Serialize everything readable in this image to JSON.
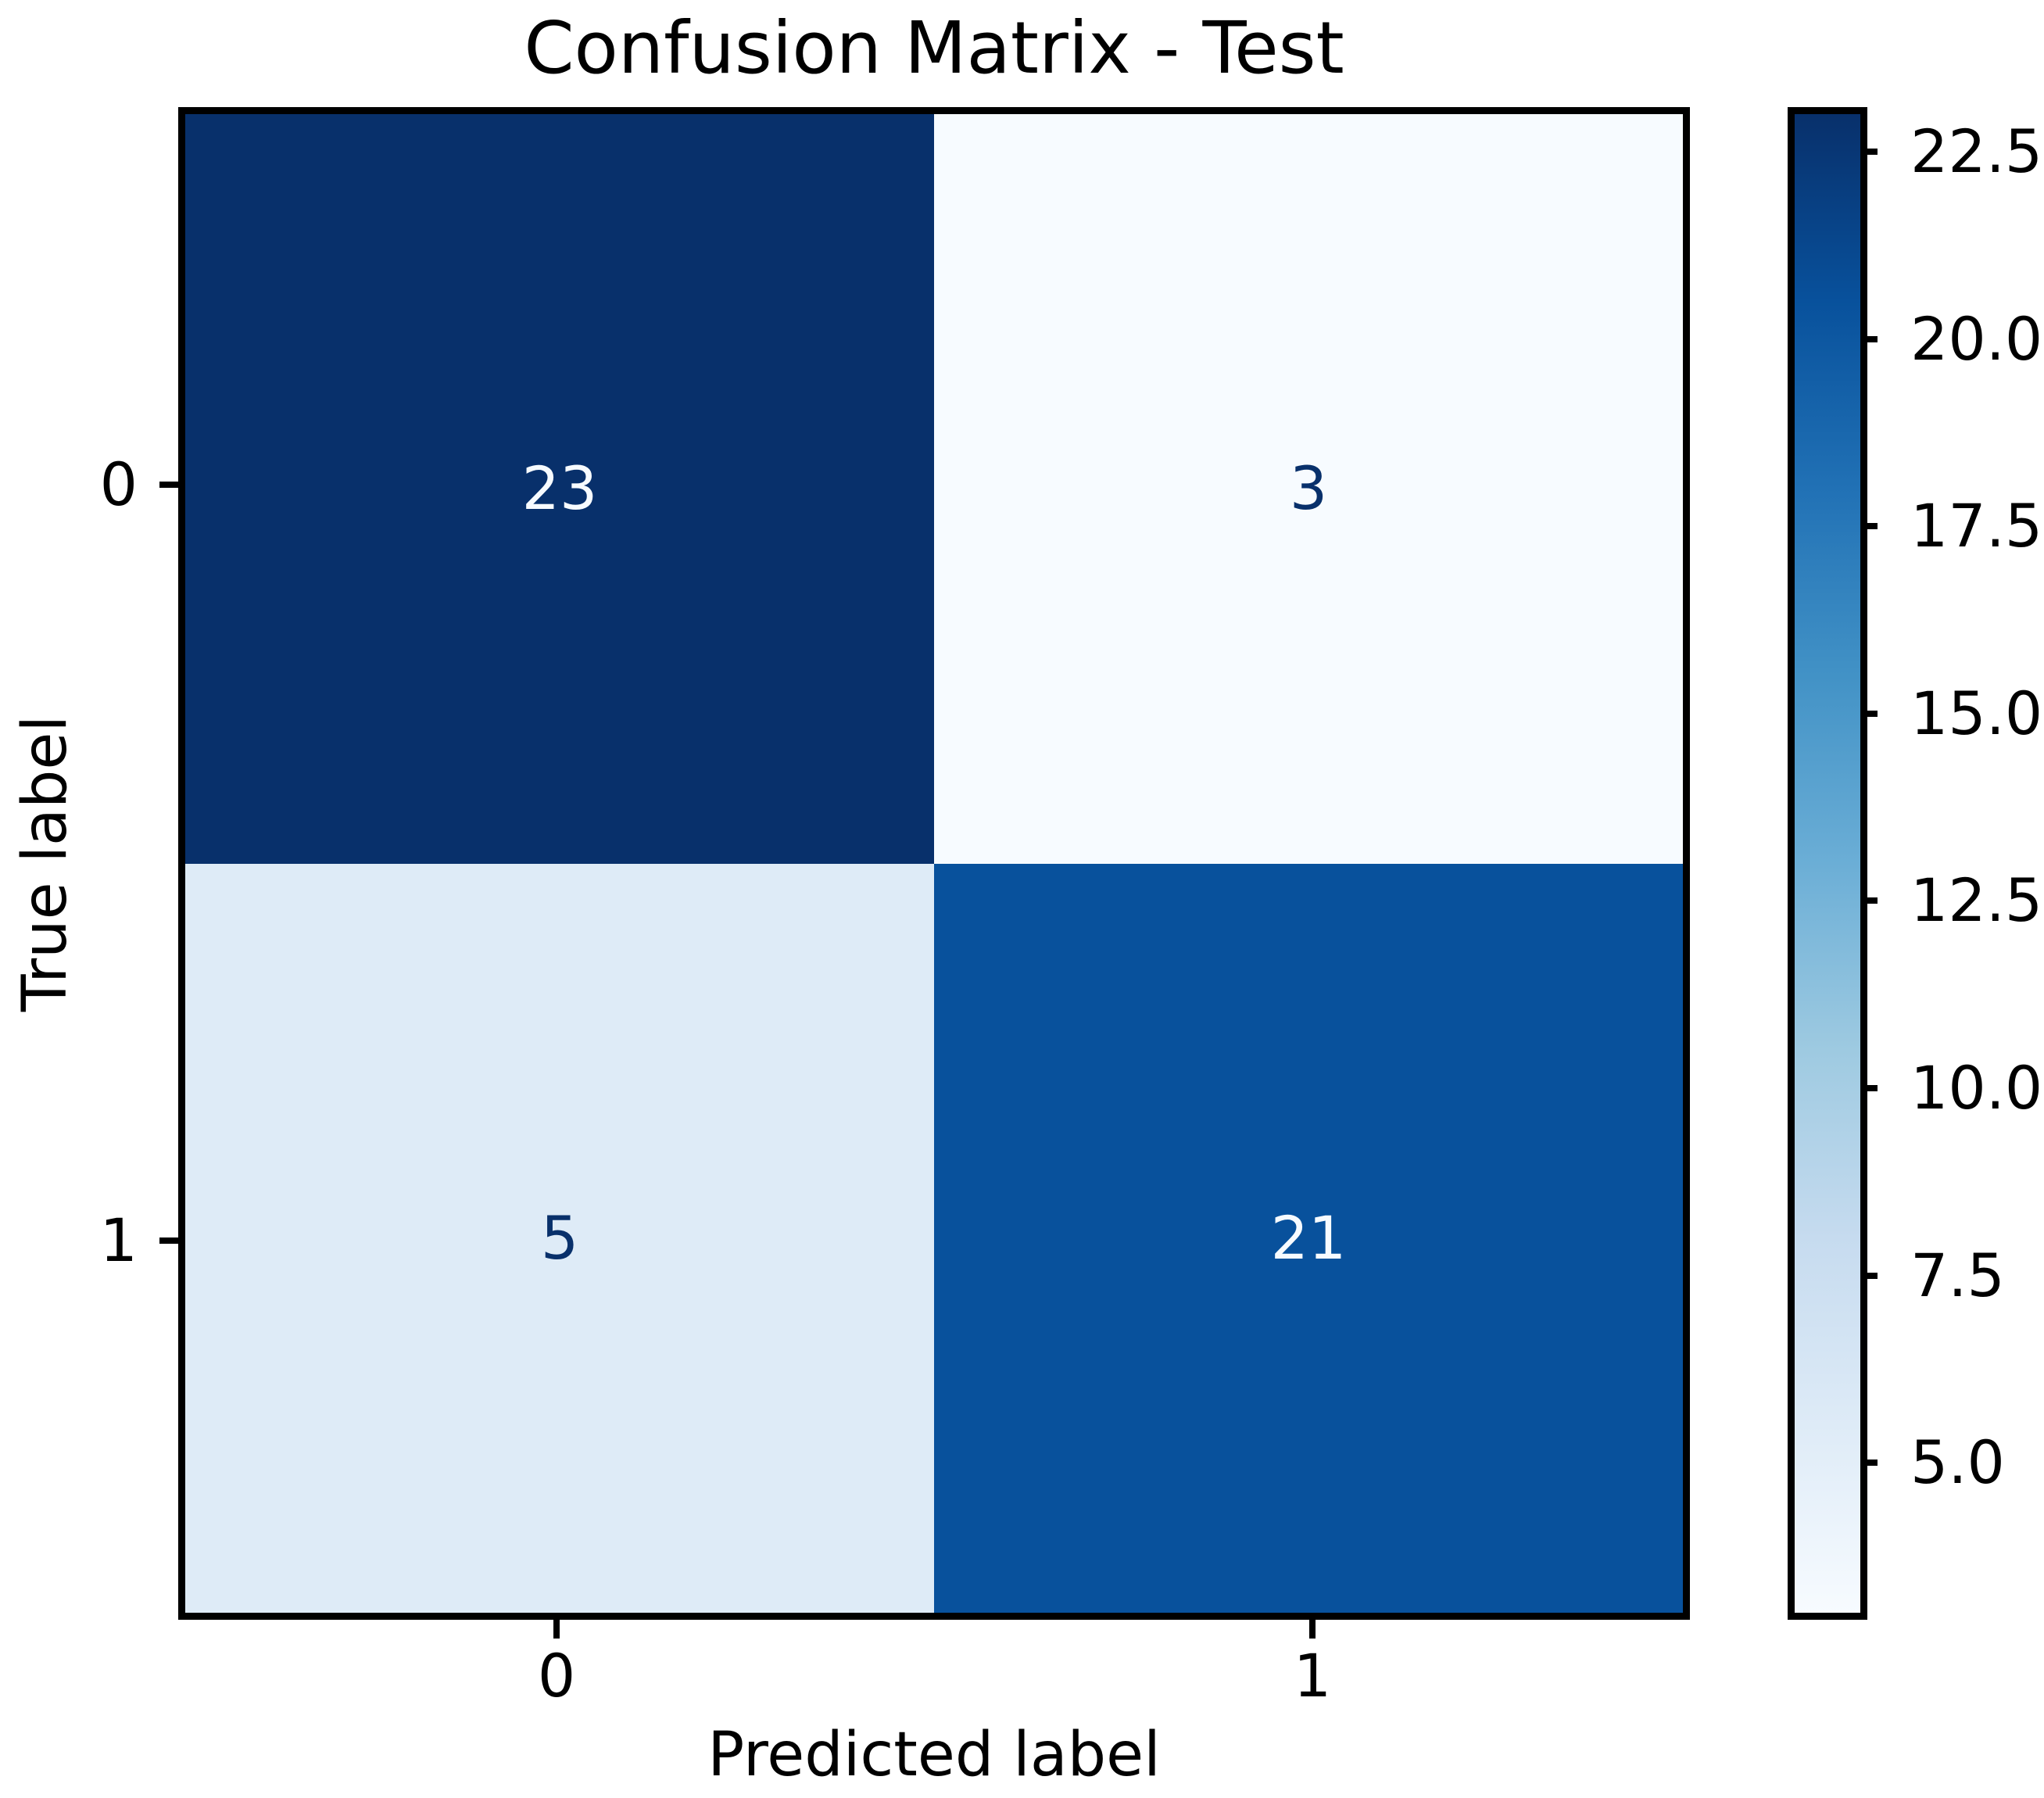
{
  "chart_data": {
    "type": "heatmap",
    "title": "Confusion Matrix - Test",
    "xlabel": "Predicted label",
    "ylabel": "True label",
    "x_tick_labels": [
      "0",
      "1"
    ],
    "y_tick_labels": [
      "0",
      "1"
    ],
    "matrix": [
      [
        23,
        3
      ],
      [
        5,
        21
      ]
    ],
    "cells": [
      {
        "row": 0,
        "col": 0,
        "value": "23",
        "bg": "#08306b",
        "fg": "#f7fbff"
      },
      {
        "row": 0,
        "col": 1,
        "value": "3",
        "bg": "#f7fbff",
        "fg": "#08306b"
      },
      {
        "row": 1,
        "col": 0,
        "value": "5",
        "bg": "#deebf7",
        "fg": "#08306b"
      },
      {
        "row": 1,
        "col": 1,
        "value": "21",
        "bg": "#08519c",
        "fg": "#f7fbff"
      }
    ],
    "colormap": "Blues",
    "vmin": 3,
    "vmax": 23,
    "grid": false,
    "colorbar": {
      "position": "right",
      "ticks": [
        22.5,
        20.0,
        17.5,
        15.0,
        12.5,
        10.0,
        7.5,
        5.0
      ],
      "tick_labels": [
        "22.5",
        "20.0",
        "17.5",
        "15.0",
        "12.5",
        "10.0",
        "7.5",
        "5.0"
      ],
      "gradient_top_to_bottom": [
        "#08306b",
        "#08519c",
        "#2171b5",
        "#4292c6",
        "#6baed6",
        "#9ecae1",
        "#c6dbef",
        "#deebf7",
        "#f7fbff"
      ]
    },
    "colors": {
      "spine": "#000000",
      "text": "#000000",
      "background": "#ffffff"
    }
  }
}
